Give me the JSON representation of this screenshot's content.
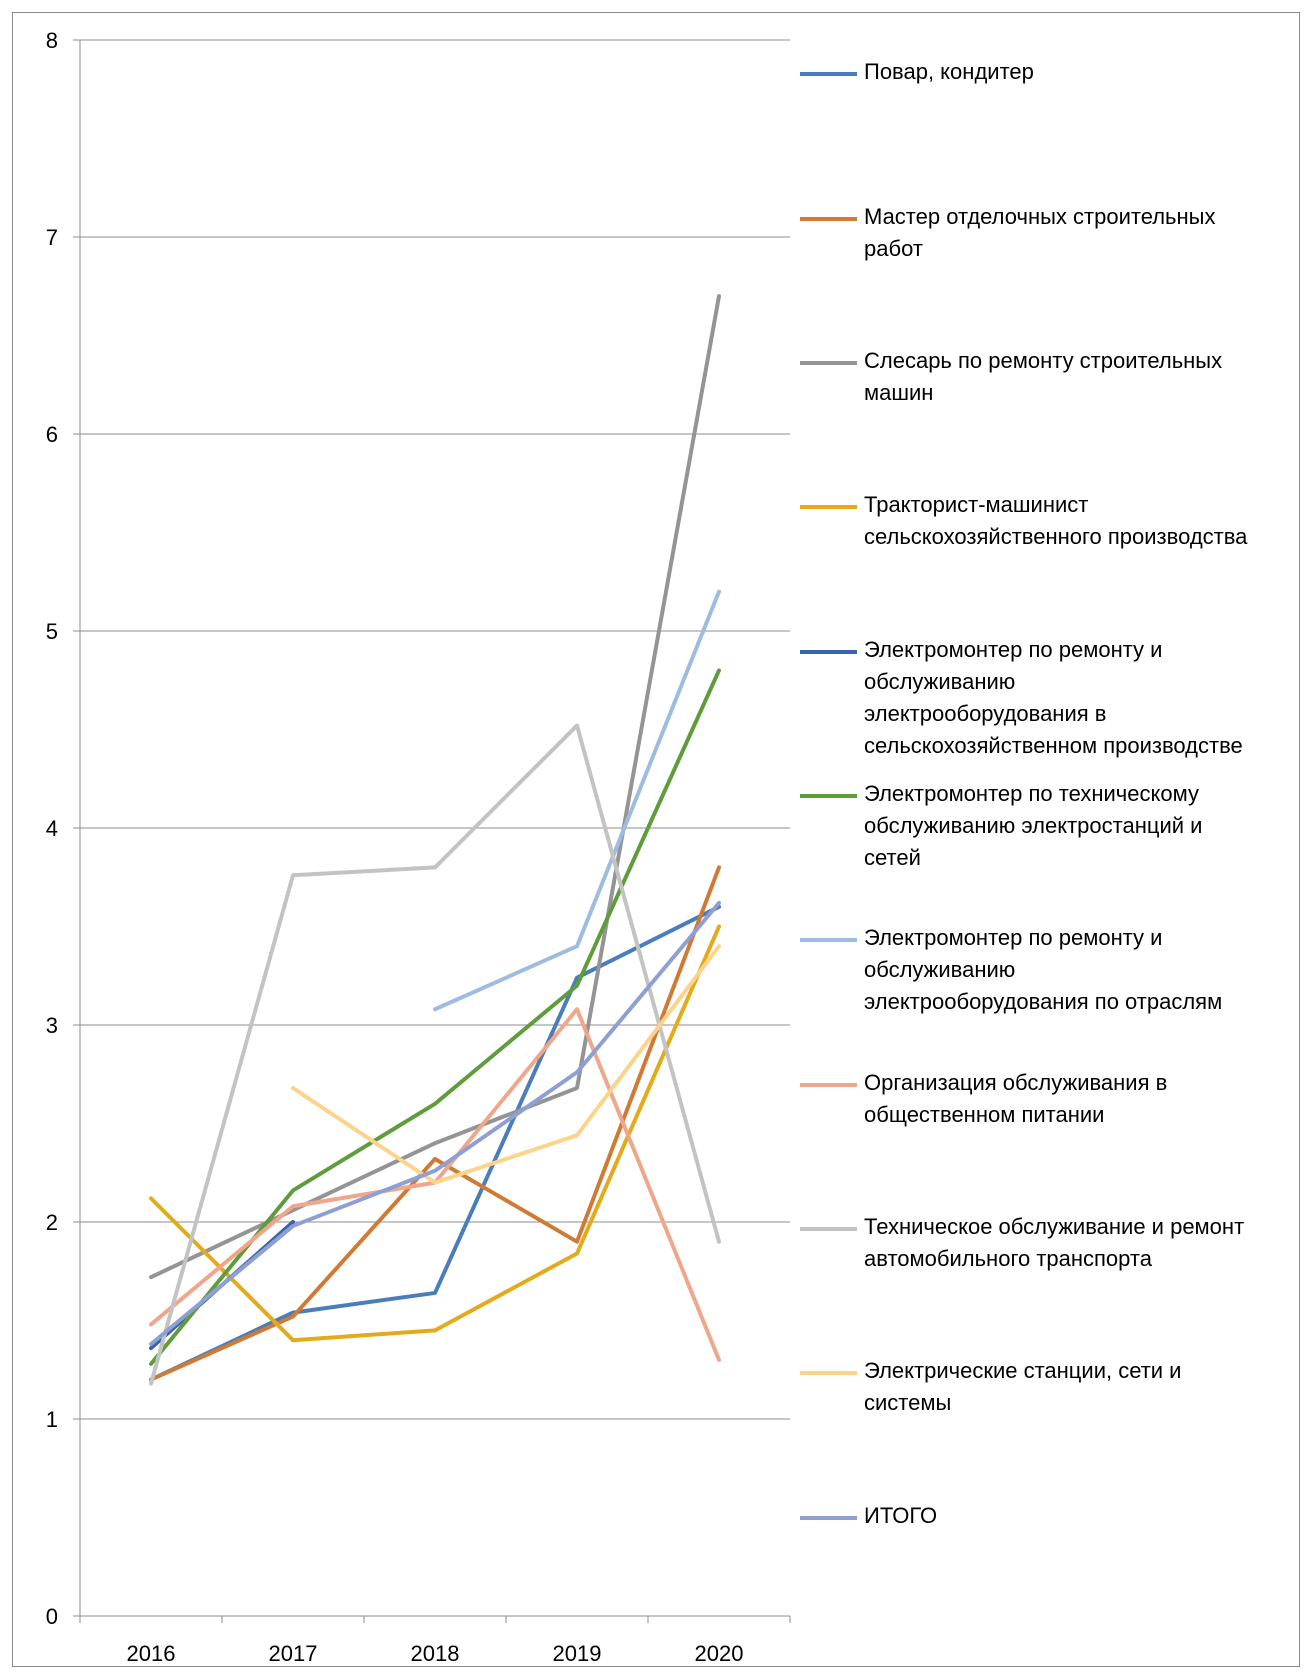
{
  "chart_data": {
    "type": "line",
    "title": "",
    "xlabel": "",
    "ylabel": "",
    "categories": [
      "2016",
      "2017",
      "2018",
      "2019",
      "2020"
    ],
    "ylim": [
      0,
      8
    ],
    "yticks": [
      0,
      1,
      2,
      3,
      4,
      5,
      6,
      7,
      8
    ],
    "grid": "horizontal",
    "legend_position": "right",
    "series": [
      {
        "name": "Повар, кондитер",
        "color": "#4a7ebb",
        "values": [
          1.2,
          1.54,
          1.64,
          3.24,
          3.6
        ]
      },
      {
        "name": "Мастер отделочных строительных работ",
        "color": "#d07a34",
        "values": [
          1.2,
          1.52,
          2.32,
          1.9,
          3.8
        ]
      },
      {
        "name": "Слесарь по ремонту строительных машин",
        "color": "#949494",
        "values": [
          1.72,
          2.06,
          2.4,
          2.68,
          6.7
        ]
      },
      {
        "name": "Тракторист-машинист сельскохозяйственного производства",
        "color": "#e3aa1a",
        "values": [
          2.12,
          1.4,
          1.45,
          1.84,
          3.5
        ]
      },
      {
        "name": "Электромонтер по ремонту и обслуживанию электрооборудования в сельскохозяйственном производстве",
        "color": "#3a64a5",
        "values": [
          1.36,
          2.0,
          null,
          null,
          null
        ]
      },
      {
        "name": "Электромонтер по техническому обслуживанию электростанций и сетей",
        "color": "#5f9c3c",
        "values": [
          1.28,
          2.16,
          2.6,
          3.2,
          4.8
        ]
      },
      {
        "name": "Электромонтер по ремонту и обслуживанию электрооборудования по отраслям",
        "color": "#9cbde2",
        "values": [
          null,
          null,
          3.08,
          3.4,
          5.2
        ]
      },
      {
        "name": "Организация обслуживания в общественном питании",
        "color": "#f0a68a",
        "values": [
          1.48,
          2.08,
          2.2,
          3.08,
          1.3
        ]
      },
      {
        "name": "Техническое обслуживание и ремонт автомобильного транспорта",
        "color": "#c3c3c3",
        "values": [
          1.18,
          3.76,
          3.8,
          4.52,
          1.9
        ]
      },
      {
        "name": "Электрические станции, сети и системы",
        "color": "#fcd38b",
        "values": [
          null,
          2.68,
          2.2,
          2.44,
          3.4
        ]
      },
      {
        "name": "ИТОГО",
        "color": "#8e9fd3",
        "values": [
          1.38,
          1.98,
          2.26,
          2.76,
          3.62
        ]
      }
    ]
  },
  "legend": {
    "labels": [
      "Повар, кондитер",
      "Мастер отделочных строительных\nработ",
      "Слесарь по ремонту строительных\nмашин",
      "Тракторист-машинист\nсельскохозяйственного производства",
      "Электромонтер по ремонту и\nобслуживанию\nэлектрооборудования в\nсельскохозяйственном производстве",
      "Электромонтер по техническому\nобслуживанию электростанций и\nсетей",
      "Электромонтер по ремонту и\nобслуживанию\nэлектрооборудования по отраслям",
      "Организация обслуживания в\nобщественном питании",
      "Техническое обслуживание и ремонт\nавтомобильного транспорта",
      "Электрические станции, сети и\nсистемы",
      "ИТОГО"
    ]
  }
}
